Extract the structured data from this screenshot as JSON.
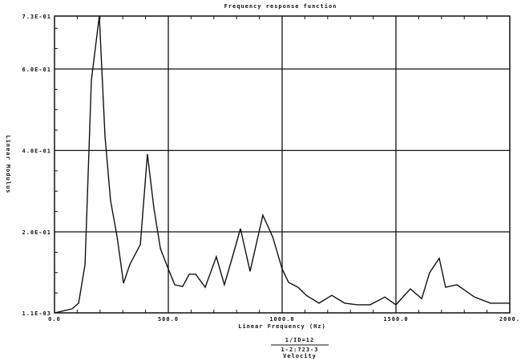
{
  "chart_data": {
    "type": "line",
    "title": "Frequency response function",
    "xlabel": "Linear Frequency (Hz)",
    "ylabel": "Linear Modulus",
    "footer": {
      "numerator": "1/ID=12",
      "denominator": "1-2:723-3",
      "quantity": "Velocity"
    },
    "xlim": [
      0,
      2000
    ],
    "ylim": [
      0.0011,
      0.73
    ],
    "x_ticks": [
      0,
      500,
      1000,
      1500,
      2000
    ],
    "x_tick_labels": [
      "0.0",
      "500.0",
      "1000.0",
      "1500.0",
      "2000."
    ],
    "y_ticks": [
      0.0011,
      0.2,
      0.4,
      0.6,
      0.73
    ],
    "y_tick_labels": [
      "1.1E-03",
      "2.0E-01",
      "4.0E-01",
      "6.0E-01",
      "7.3E-01"
    ],
    "grid": true,
    "line_color": "#111111",
    "series": [
      {
        "x": [
          0,
          77,
          106,
          134,
          162,
          197,
          222,
          246,
          275,
          303,
          331,
          377,
          408,
          437,
          465,
          500,
          528,
          563,
          592,
          620,
          662,
          711,
          746,
          782,
          817,
          859,
          915,
          958,
          1000,
          1028,
          1070,
          1106,
          1162,
          1218,
          1275,
          1331,
          1387,
          1451,
          1500,
          1563,
          1613,
          1648,
          1690,
          1718,
          1768,
          1845,
          1915,
          2000
        ],
        "y": [
          0.001,
          0.011,
          0.025,
          0.12,
          0.572,
          0.73,
          0.435,
          0.277,
          0.188,
          0.074,
          0.12,
          0.169,
          0.391,
          0.257,
          0.159,
          0.109,
          0.07,
          0.066,
          0.096,
          0.096,
          0.064,
          0.139,
          0.07,
          0.139,
          0.208,
          0.103,
          0.241,
          0.188,
          0.109,
          0.076,
          0.064,
          0.044,
          0.025,
          0.044,
          0.025,
          0.021,
          0.021,
          0.04,
          0.021,
          0.06,
          0.036,
          0.1,
          0.135,
          0.064,
          0.07,
          0.04,
          0.025,
          0.025
        ]
      }
    ]
  }
}
